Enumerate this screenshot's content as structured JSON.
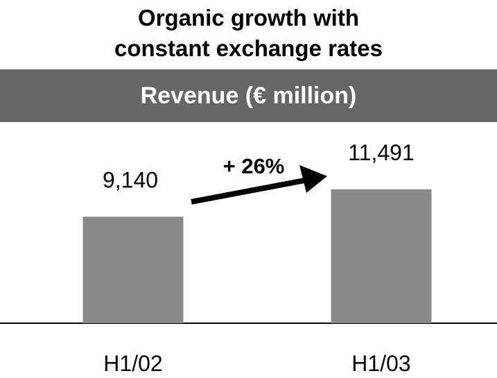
{
  "chart_data": {
    "type": "bar",
    "title": "Organic growth with constant exchange rates",
    "subtitle": "Revenue (€ million)",
    "categories": [
      "H1/02",
      "H1/03"
    ],
    "values": [
      9140,
      11491
    ],
    "value_labels": [
      "9,140",
      "11,491"
    ],
    "color": "#898989",
    "annotation": "+ 26%"
  }
}
